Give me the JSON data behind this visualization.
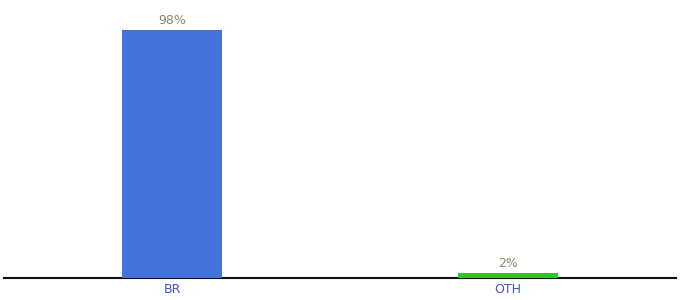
{
  "categories": [
    "BR",
    "OTH"
  ],
  "values": [
    98,
    2
  ],
  "bar_colors": [
    "#4472db",
    "#22cc22"
  ],
  "label_color": "#888866",
  "ylim": [
    0,
    108
  ],
  "bar_width": 0.6,
  "tick_fontsize": 9,
  "label_fontsize": 9,
  "background_color": "#ffffff",
  "axis_line_color": "#111111",
  "x_tick_color": "#4455cc",
  "xlim": [
    -0.5,
    3.5
  ]
}
